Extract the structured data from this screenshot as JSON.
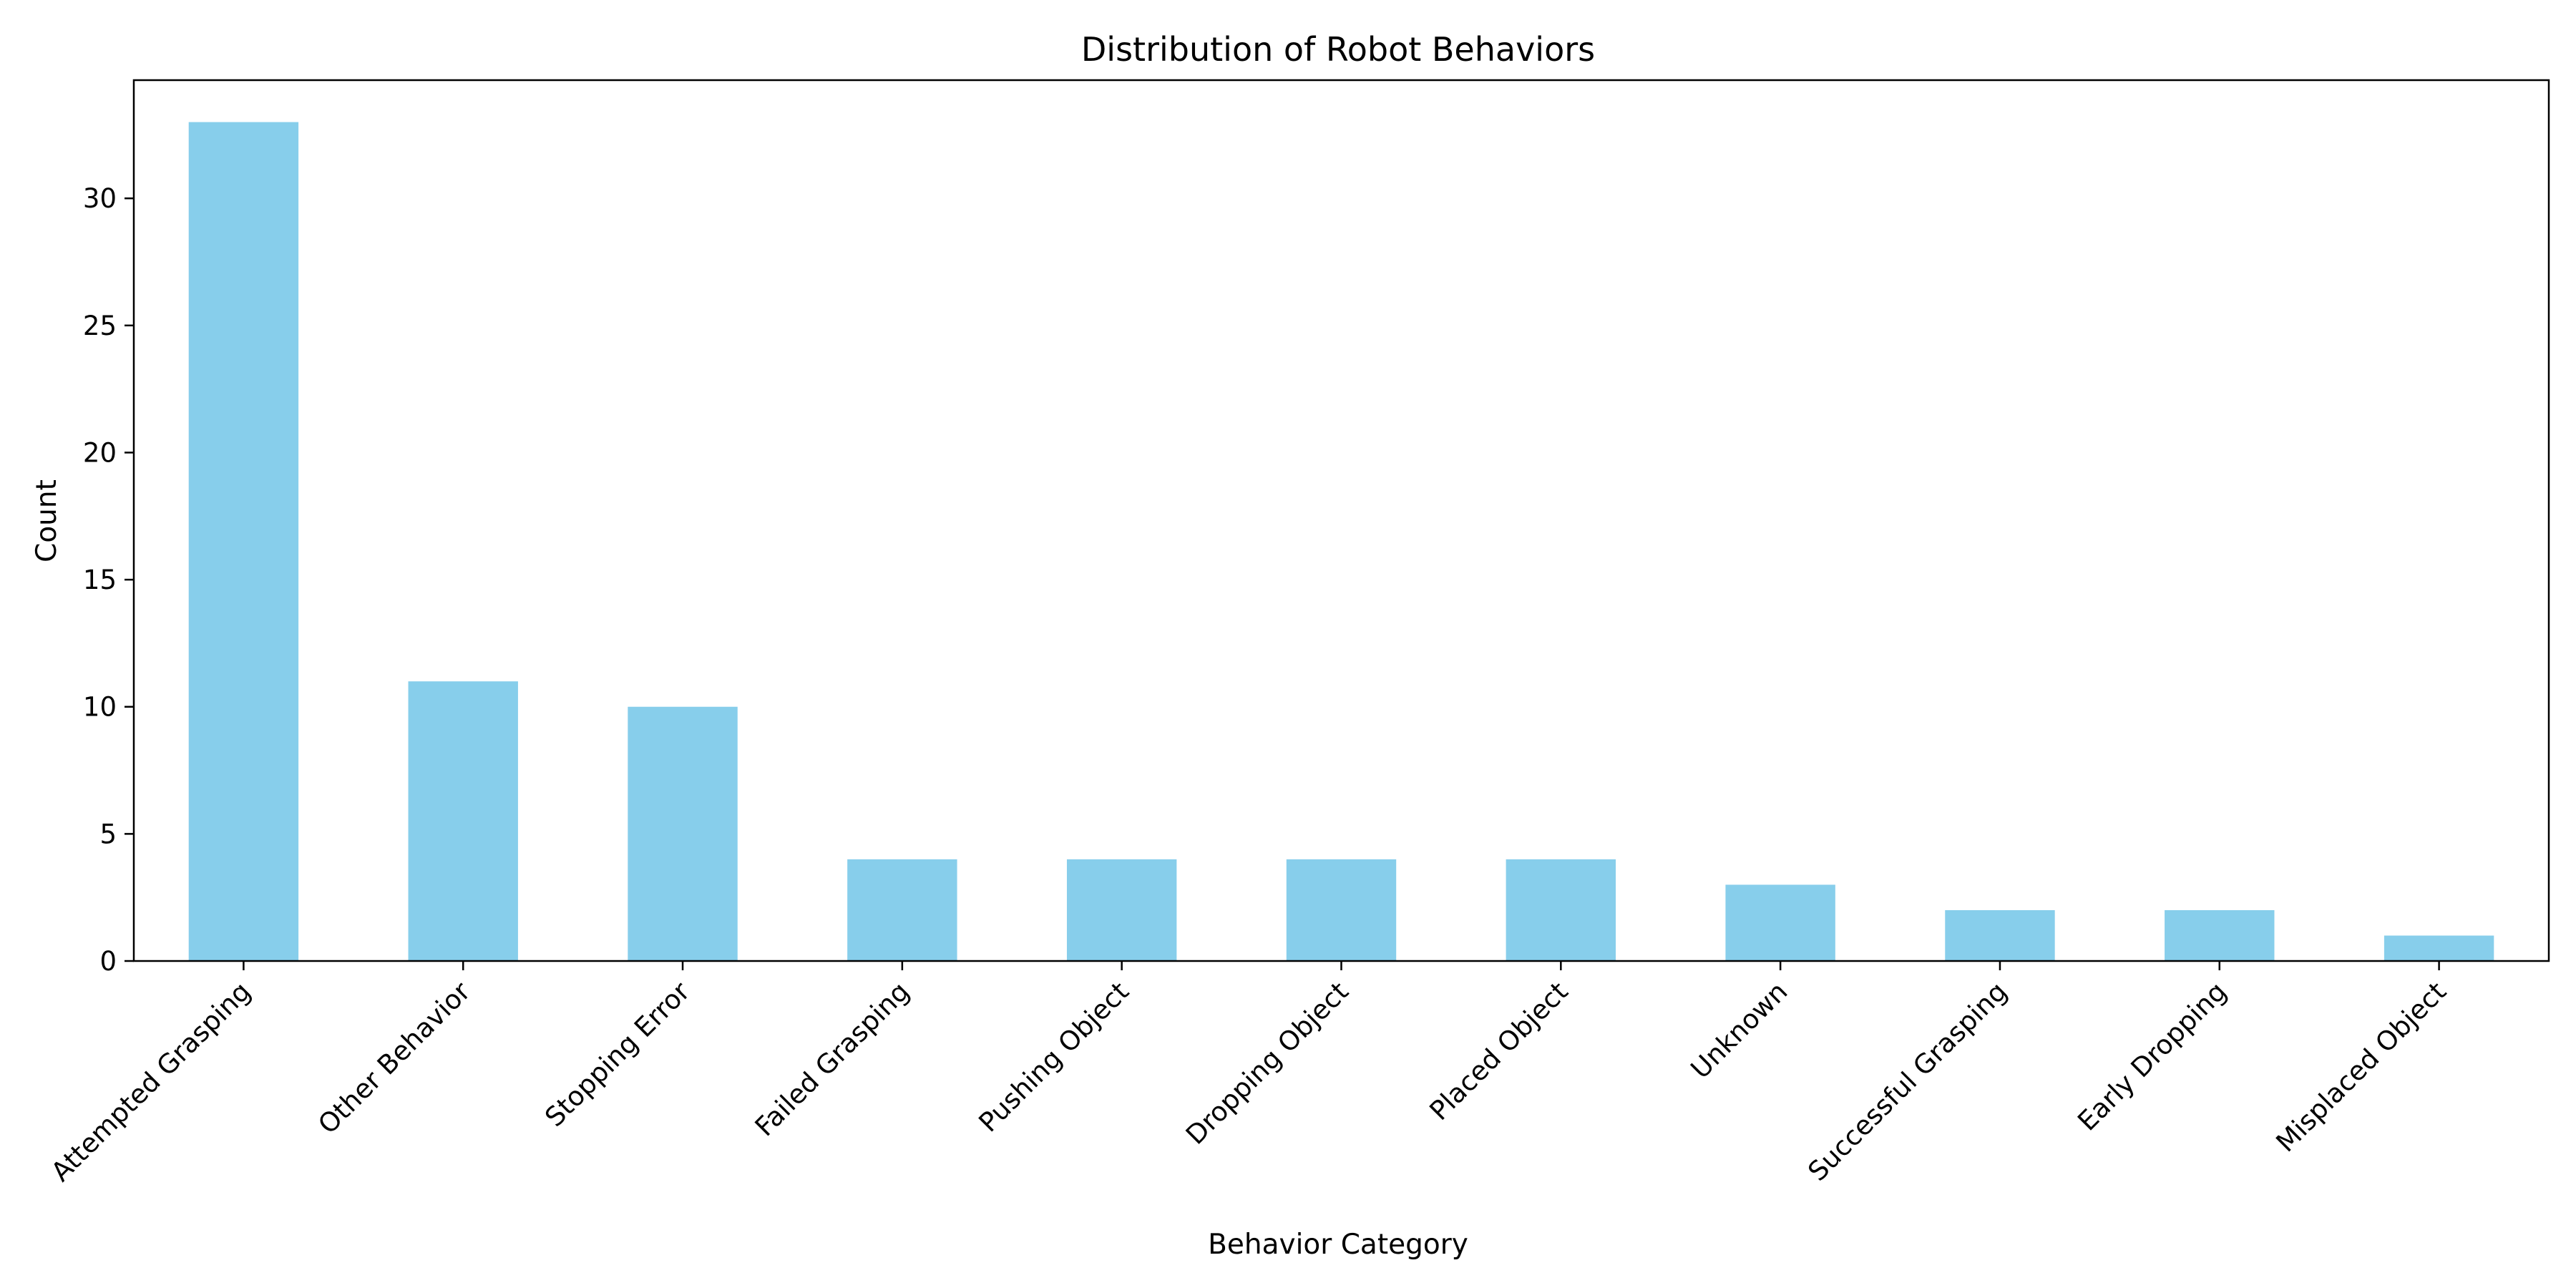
{
  "chart_data": {
    "type": "bar",
    "title": "Distribution of Robot Behaviors",
    "xlabel": "Behavior Category",
    "ylabel": "Count",
    "categories": [
      "Attempted Grasping",
      "Other Behavior",
      "Stopping Error",
      "Failed Grasping",
      "Pushing Object",
      "Dropping Object",
      "Placed Object",
      "Unknown",
      "Successful Grasping",
      "Early Dropping",
      "Misplaced Object"
    ],
    "values": [
      33,
      11,
      10,
      4,
      4,
      4,
      4,
      3,
      2,
      2,
      1
    ],
    "ylim": [
      0,
      34.65
    ],
    "yticks": [
      0,
      5,
      10,
      15,
      20,
      25,
      30
    ],
    "bar_color": "#87CEEB",
    "grid": false,
    "legend": "none"
  }
}
